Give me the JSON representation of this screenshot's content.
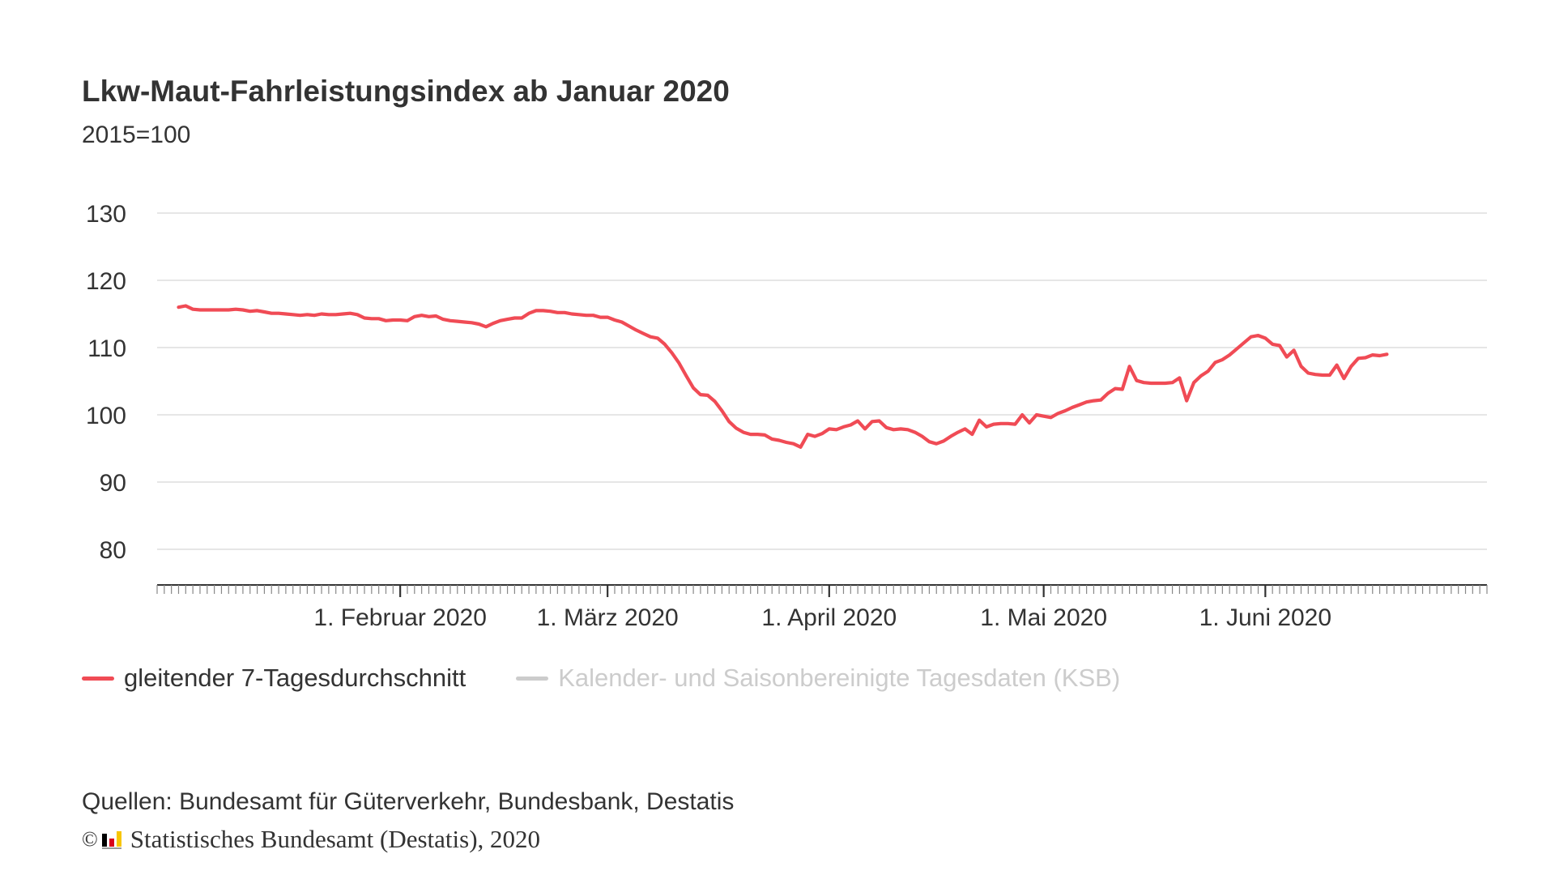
{
  "title": "Lkw-Maut-Fahrleistungsindex ab Januar 2020",
  "subtitle": "2015=100",
  "legend": [
    {
      "label": "gleitender 7-Tagesdurchschnitt",
      "color": "#f04b55",
      "active": true
    },
    {
      "label": "Kalender- und Saisonbereinigte Tagesdaten (KSB)",
      "color": "#cccccc",
      "active": false
    }
  ],
  "source": "Quellen: Bundesamt für Güterverkehr, Bundesbank, Destatis",
  "copyright": {
    "symbol": "©",
    "text": "Statistisches Bundesamt (Destatis), 2020"
  },
  "colors": {
    "series": "#f04b55",
    "grid": "#dddddd",
    "axis": "#333333",
    "inactive": "#cccccc"
  },
  "chart_data": {
    "type": "line",
    "title": "Lkw-Maut-Fahrleistungsindex ab Januar 2020",
    "subtitle": "2015=100",
    "x_axis": {
      "type": "date",
      "range": [
        "2019-12-29",
        "2020-07-02"
      ],
      "tick_labels": [
        {
          "date": "2020-02-01",
          "label": "1. Februar 2020"
        },
        {
          "date": "2020-03-01",
          "label": "1. März 2020"
        },
        {
          "date": "2020-04-01",
          "label": "1. April 2020"
        },
        {
          "date": "2020-05-01",
          "label": "1. Mai 2020"
        },
        {
          "date": "2020-06-01",
          "label": "1. Juni 2020"
        }
      ],
      "minor_ticks": "daily"
    },
    "y_axis": {
      "ticks": [
        80,
        90,
        100,
        110,
        120,
        130
      ],
      "ylim": [
        75,
        130
      ]
    },
    "grid": true,
    "legend_position": "bottom-left",
    "series": [
      {
        "name": "gleitender 7-Tagesdurchschnitt",
        "color": "#f04b55",
        "start_date": "2020-01-01",
        "interval": "daily",
        "values": [
          116.0,
          116.2,
          115.7,
          115.6,
          115.6,
          115.6,
          115.6,
          115.6,
          115.7,
          115.6,
          115.4,
          115.5,
          115.3,
          115.1,
          115.1,
          115.0,
          114.9,
          114.8,
          114.9,
          114.8,
          115.0,
          114.9,
          114.9,
          115.0,
          115.1,
          114.9,
          114.4,
          114.3,
          114.3,
          114.0,
          114.1,
          114.1,
          114.0,
          114.6,
          114.8,
          114.6,
          114.7,
          114.2,
          114.0,
          113.9,
          113.8,
          113.7,
          113.5,
          113.1,
          113.6,
          114.0,
          114.2,
          114.4,
          114.4,
          115.1,
          115.5,
          115.5,
          115.4,
          115.2,
          115.2,
          115.0,
          114.9,
          114.8,
          114.8,
          114.5,
          114.5,
          114.1,
          113.8,
          113.2,
          112.6,
          112.1,
          111.6,
          111.4,
          110.5,
          109.2,
          107.7,
          105.8,
          104.0,
          103.0,
          102.9,
          102.0,
          100.6,
          99.0,
          98.0,
          97.4,
          97.1,
          97.1,
          97.0,
          96.4,
          96.2,
          95.9,
          95.7,
          95.2,
          97.1,
          96.8,
          97.2,
          97.9,
          97.8,
          98.2,
          98.5,
          99.1,
          97.9,
          99.0,
          99.1,
          98.1,
          97.8,
          97.9,
          97.8,
          97.4,
          96.8,
          96.0,
          95.7,
          96.1,
          96.8,
          97.4,
          97.9,
          97.1,
          99.2,
          98.2,
          98.6,
          98.7,
          98.7,
          98.6,
          100.0,
          98.8,
          100.0,
          99.8,
          99.6,
          100.2,
          100.6,
          101.1,
          101.5,
          101.9,
          102.1,
          102.2,
          103.2,
          103.9,
          103.8,
          107.2,
          105.1,
          104.8,
          104.7,
          104.7,
          104.7,
          104.8,
          105.5,
          102.1,
          104.8,
          105.8,
          106.5,
          107.8,
          108.2,
          108.9,
          109.8,
          110.7,
          111.6,
          111.8,
          111.4,
          110.5,
          110.3,
          108.6,
          109.6,
          107.2,
          106.2,
          106.0,
          105.9,
          105.9,
          107.4,
          105.4,
          107.2,
          108.4,
          108.5,
          108.9,
          108.8,
          109.0
        ]
      },
      {
        "name": "Kalender- und Saisonbereinigte Tagesdaten (KSB)",
        "color": "#cccccc",
        "hidden": true,
        "values": []
      }
    ]
  }
}
